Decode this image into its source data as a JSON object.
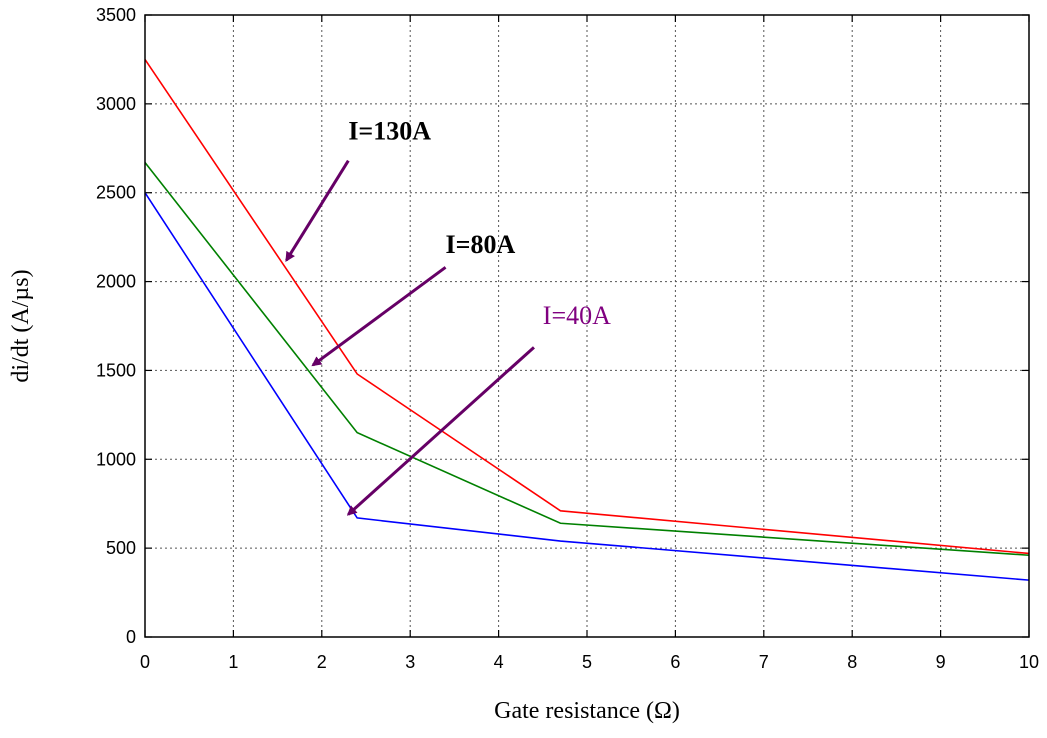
{
  "chart_data": {
    "type": "line",
    "title": "",
    "xlabel": "Gate resistance (Ω)",
    "ylabel": "di/dt (A/µs)",
    "xlim": [
      0,
      10
    ],
    "ylim": [
      0,
      3500
    ],
    "xticks": [
      0,
      1,
      2,
      3,
      4,
      5,
      6,
      7,
      8,
      9,
      10
    ],
    "yticks": [
      0,
      500,
      1000,
      1500,
      2000,
      2500,
      3000,
      3500
    ],
    "grid": true,
    "legend": "none",
    "series": [
      {
        "color": "#ff0000",
        "x": [
          0,
          2.4,
          4.7,
          10
        ],
        "y": [
          3250,
          1480,
          710,
          470
        ]
      },
      {
        "color": "#008000",
        "x": [
          0,
          2.4,
          4.7,
          10
        ],
        "y": [
          2670,
          1150,
          640,
          460
        ]
      },
      {
        "color": "#0000ff",
        "x": [
          0,
          2.4,
          4.7,
          10
        ],
        "y": [
          2500,
          670,
          540,
          320
        ]
      }
    ],
    "annotations": [
      {
        "text": "I=130A",
        "weight": "bold",
        "color": "#000000",
        "text_at": [
          2.3,
          2800
        ],
        "arrow_from": [
          2.3,
          2680
        ],
        "arrow_to": [
          1.6,
          2120
        ]
      },
      {
        "text": "I=80A",
        "weight": "bold",
        "color": "#000000",
        "text_at": [
          3.4,
          2160
        ],
        "arrow_from": [
          3.4,
          2080
        ],
        "arrow_to": [
          1.9,
          1530
        ]
      },
      {
        "text": "I=40A",
        "weight": "normal",
        "color": "#800080",
        "text_at": [
          4.5,
          1760
        ],
        "arrow_from": [
          4.4,
          1630
        ],
        "arrow_to": [
          2.3,
          690
        ]
      }
    ],
    "arrow_color": "#660066"
  }
}
